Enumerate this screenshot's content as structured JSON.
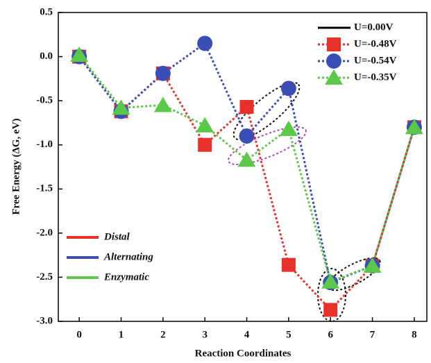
{
  "chart_data": {
    "type": "line",
    "y_label": "Free Energy (ΔG, eV)",
    "x_label": "Reaction Coordinates",
    "x": [
      0,
      1,
      2,
      3,
      4,
      5,
      6,
      7,
      8
    ],
    "xlim": [
      -0.5,
      8.3
    ],
    "xticks": [
      0,
      1,
      2,
      3,
      4,
      5,
      6,
      7,
      8
    ],
    "ylim": [
      -3.0,
      0.5
    ],
    "yticks": [
      0.5,
      {
        "value": 0.0,
        "label": "0.0"
      },
      -0.5,
      {
        "value": -1.0,
        "label": "-1.0"
      },
      -1.5,
      {
        "value": -2.0,
        "label": "-2.0"
      },
      -2.5,
      {
        "value": -3.0,
        "label": "-3.0"
      }
    ],
    "reference_entry": {
      "name": "U=0.00V",
      "color": "#000000"
    },
    "series": [
      {
        "name": "U=-0.48V",
        "pathway": "Distal",
        "color": "#e8302a",
        "marker": "square",
        "values": [
          0,
          -0.62,
          -0.19,
          -1.0,
          -0.57,
          -2.36,
          -2.87,
          -2.37,
          -0.8
        ]
      },
      {
        "name": "U=-0.54V",
        "pathway": "Alternating",
        "color": "#3a4fb5",
        "marker": "circle",
        "values": [
          0,
          -0.62,
          -0.19,
          0.15,
          -0.9,
          -0.36,
          -2.56,
          -2.37,
          -0.8
        ]
      },
      {
        "name": "U=-0.35V",
        "pathway": "Enzymatic",
        "color": "#5cc84a",
        "marker": "triangle",
        "values": [
          0.02,
          -0.58,
          -0.55,
          -0.78,
          -1.17,
          -0.82,
          -2.55,
          -2.37,
          -0.8
        ]
      }
    ]
  }
}
